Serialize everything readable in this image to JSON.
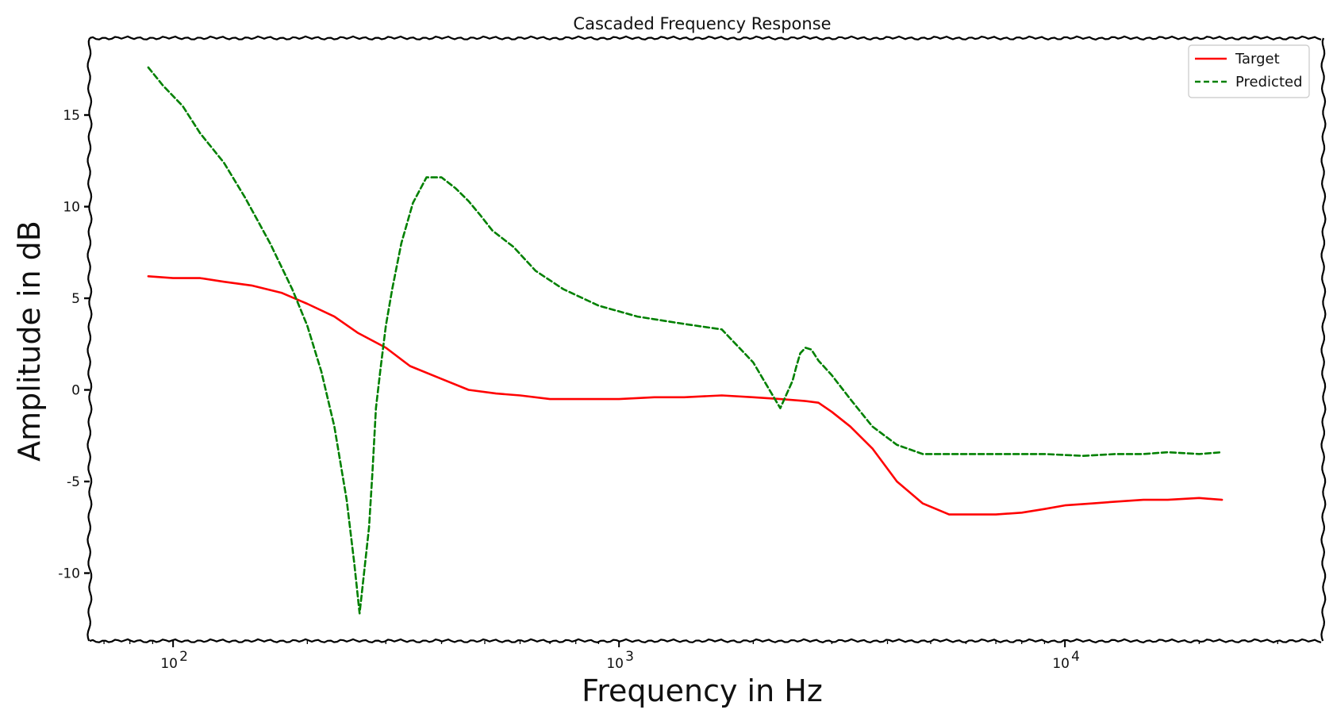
{
  "chart_data": {
    "type": "line",
    "title": "Cascaded Frequency Response",
    "xlabel": "Frequency in Hz",
    "ylabel": "Amplitude in dB",
    "x_scale": "log",
    "xlim": [
      65,
      38000
    ],
    "ylim": [
      -13.7,
      19.2
    ],
    "x_ticks": [
      {
        "value": 100,
        "label": "10",
        "exp": "2"
      },
      {
        "value": 1000,
        "label": "10",
        "exp": "3"
      },
      {
        "value": 10000,
        "label": "10",
        "exp": "4"
      }
    ],
    "y_ticks": [
      {
        "value": 15,
        "label": "15"
      },
      {
        "value": 10,
        "label": "10"
      },
      {
        "value": 5,
        "label": "5"
      },
      {
        "value": 0,
        "label": "0"
      },
      {
        "value": -5,
        "label": "-5"
      },
      {
        "value": -10,
        "label": "-10"
      }
    ],
    "grid": false,
    "legend_position": "top-right",
    "series": [
      {
        "name": "Target",
        "color": "#ff0000",
        "style": "solid",
        "x": [
          88,
          100,
          115,
          130,
          150,
          175,
          200,
          230,
          260,
          300,
          340,
          400,
          460,
          530,
          600,
          700,
          800,
          900,
          1000,
          1200,
          1400,
          1700,
          2000,
          2300,
          2600,
          2800,
          3000,
          3300,
          3700,
          4200,
          4800,
          5500,
          6200,
          7000,
          8000,
          9000,
          10000,
          11500,
          13000,
          15000,
          17000,
          20000,
          22500
        ],
        "y": [
          6.2,
          6.1,
          6.1,
          5.9,
          5.7,
          5.3,
          4.7,
          4.0,
          3.1,
          2.3,
          1.3,
          0.6,
          0.0,
          -0.2,
          -0.3,
          -0.5,
          -0.5,
          -0.5,
          -0.5,
          -0.4,
          -0.4,
          -0.3,
          -0.4,
          -0.5,
          -0.6,
          -0.7,
          -1.2,
          -2.0,
          -3.2,
          -5.0,
          -6.2,
          -6.8,
          -6.8,
          -6.8,
          -6.7,
          -6.5,
          -6.3,
          -6.2,
          -6.1,
          -6.0,
          -6.0,
          -5.9,
          -6.0
        ]
      },
      {
        "name": "Predicted",
        "color": "#008000",
        "style": "dashed",
        "x": [
          88,
          95,
          105,
          115,
          130,
          145,
          165,
          185,
          200,
          215,
          230,
          245,
          255,
          262,
          268,
          275,
          280,
          285,
          292,
          300,
          310,
          325,
          345,
          370,
          400,
          430,
          460,
          490,
          520,
          580,
          650,
          750,
          900,
          1100,
          1400,
          1700,
          2000,
          2300,
          2450,
          2500,
          2550,
          2620,
          2700,
          2800,
          3000,
          3300,
          3700,
          4200,
          4800,
          5500,
          6500,
          7500,
          9000,
          11000,
          13000,
          15000,
          17000,
          20000,
          22500
        ],
        "y": [
          17.6,
          16.6,
          15.5,
          14.0,
          12.4,
          10.5,
          8.0,
          5.5,
          3.5,
          1.0,
          -2.0,
          -6.0,
          -9.5,
          -12.2,
          -10.0,
          -7.5,
          -4.5,
          -1.0,
          1.2,
          3.5,
          5.5,
          8.0,
          10.2,
          11.6,
          11.6,
          11.0,
          10.3,
          9.5,
          8.7,
          7.8,
          6.5,
          5.5,
          4.6,
          4.0,
          3.6,
          3.3,
          1.5,
          -1.0,
          0.5,
          1.3,
          2.0,
          2.3,
          2.2,
          1.6,
          0.8,
          -0.5,
          -2.0,
          -3.0,
          -3.5,
          -3.5,
          -3.5,
          -3.5,
          -3.5,
          -3.6,
          -3.5,
          -3.5,
          -3.4,
          -3.5,
          -3.4
        ]
      }
    ]
  }
}
